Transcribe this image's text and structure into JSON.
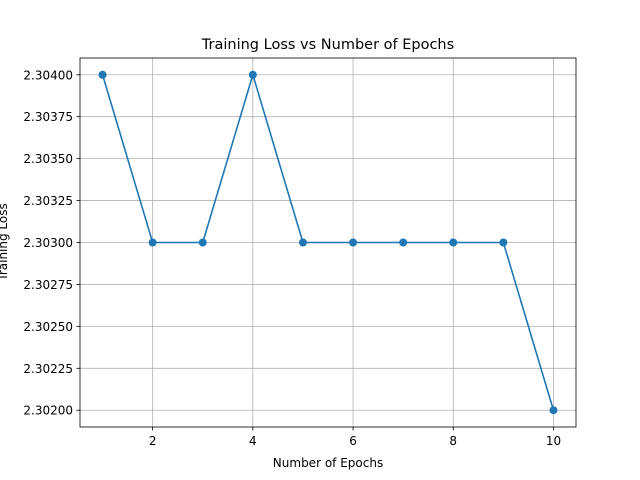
{
  "chart_data": {
    "type": "line",
    "title": "Training Loss vs Number of Epochs",
    "xlabel": "Number of Epochs",
    "ylabel": "Training Loss",
    "x": [
      1,
      2,
      3,
      4,
      5,
      6,
      7,
      8,
      9,
      10
    ],
    "series": [
      {
        "name": "Training Loss",
        "values": [
          2.304,
          2.303,
          2.303,
          2.304,
          2.303,
          2.303,
          2.303,
          2.303,
          2.303,
          2.302
        ],
        "color": "#1f77b4",
        "marker": "circle"
      }
    ],
    "xlim": [
      0.55,
      10.45
    ],
    "ylim": [
      2.3019,
      2.3041
    ],
    "xticks": [
      2,
      4,
      6,
      8,
      10
    ],
    "xtick_labels": [
      "2",
      "4",
      "6",
      "8",
      "10"
    ],
    "yticks": [
      2.302,
      2.30225,
      2.3025,
      2.30275,
      2.303,
      2.30325,
      2.3035,
      2.30375,
      2.304
    ],
    "ytick_labels": [
      "2.30200",
      "2.30225",
      "2.30250",
      "2.30275",
      "2.30300",
      "2.30325",
      "2.30350",
      "2.30375",
      "2.30400"
    ],
    "grid": true,
    "legend": "none"
  }
}
